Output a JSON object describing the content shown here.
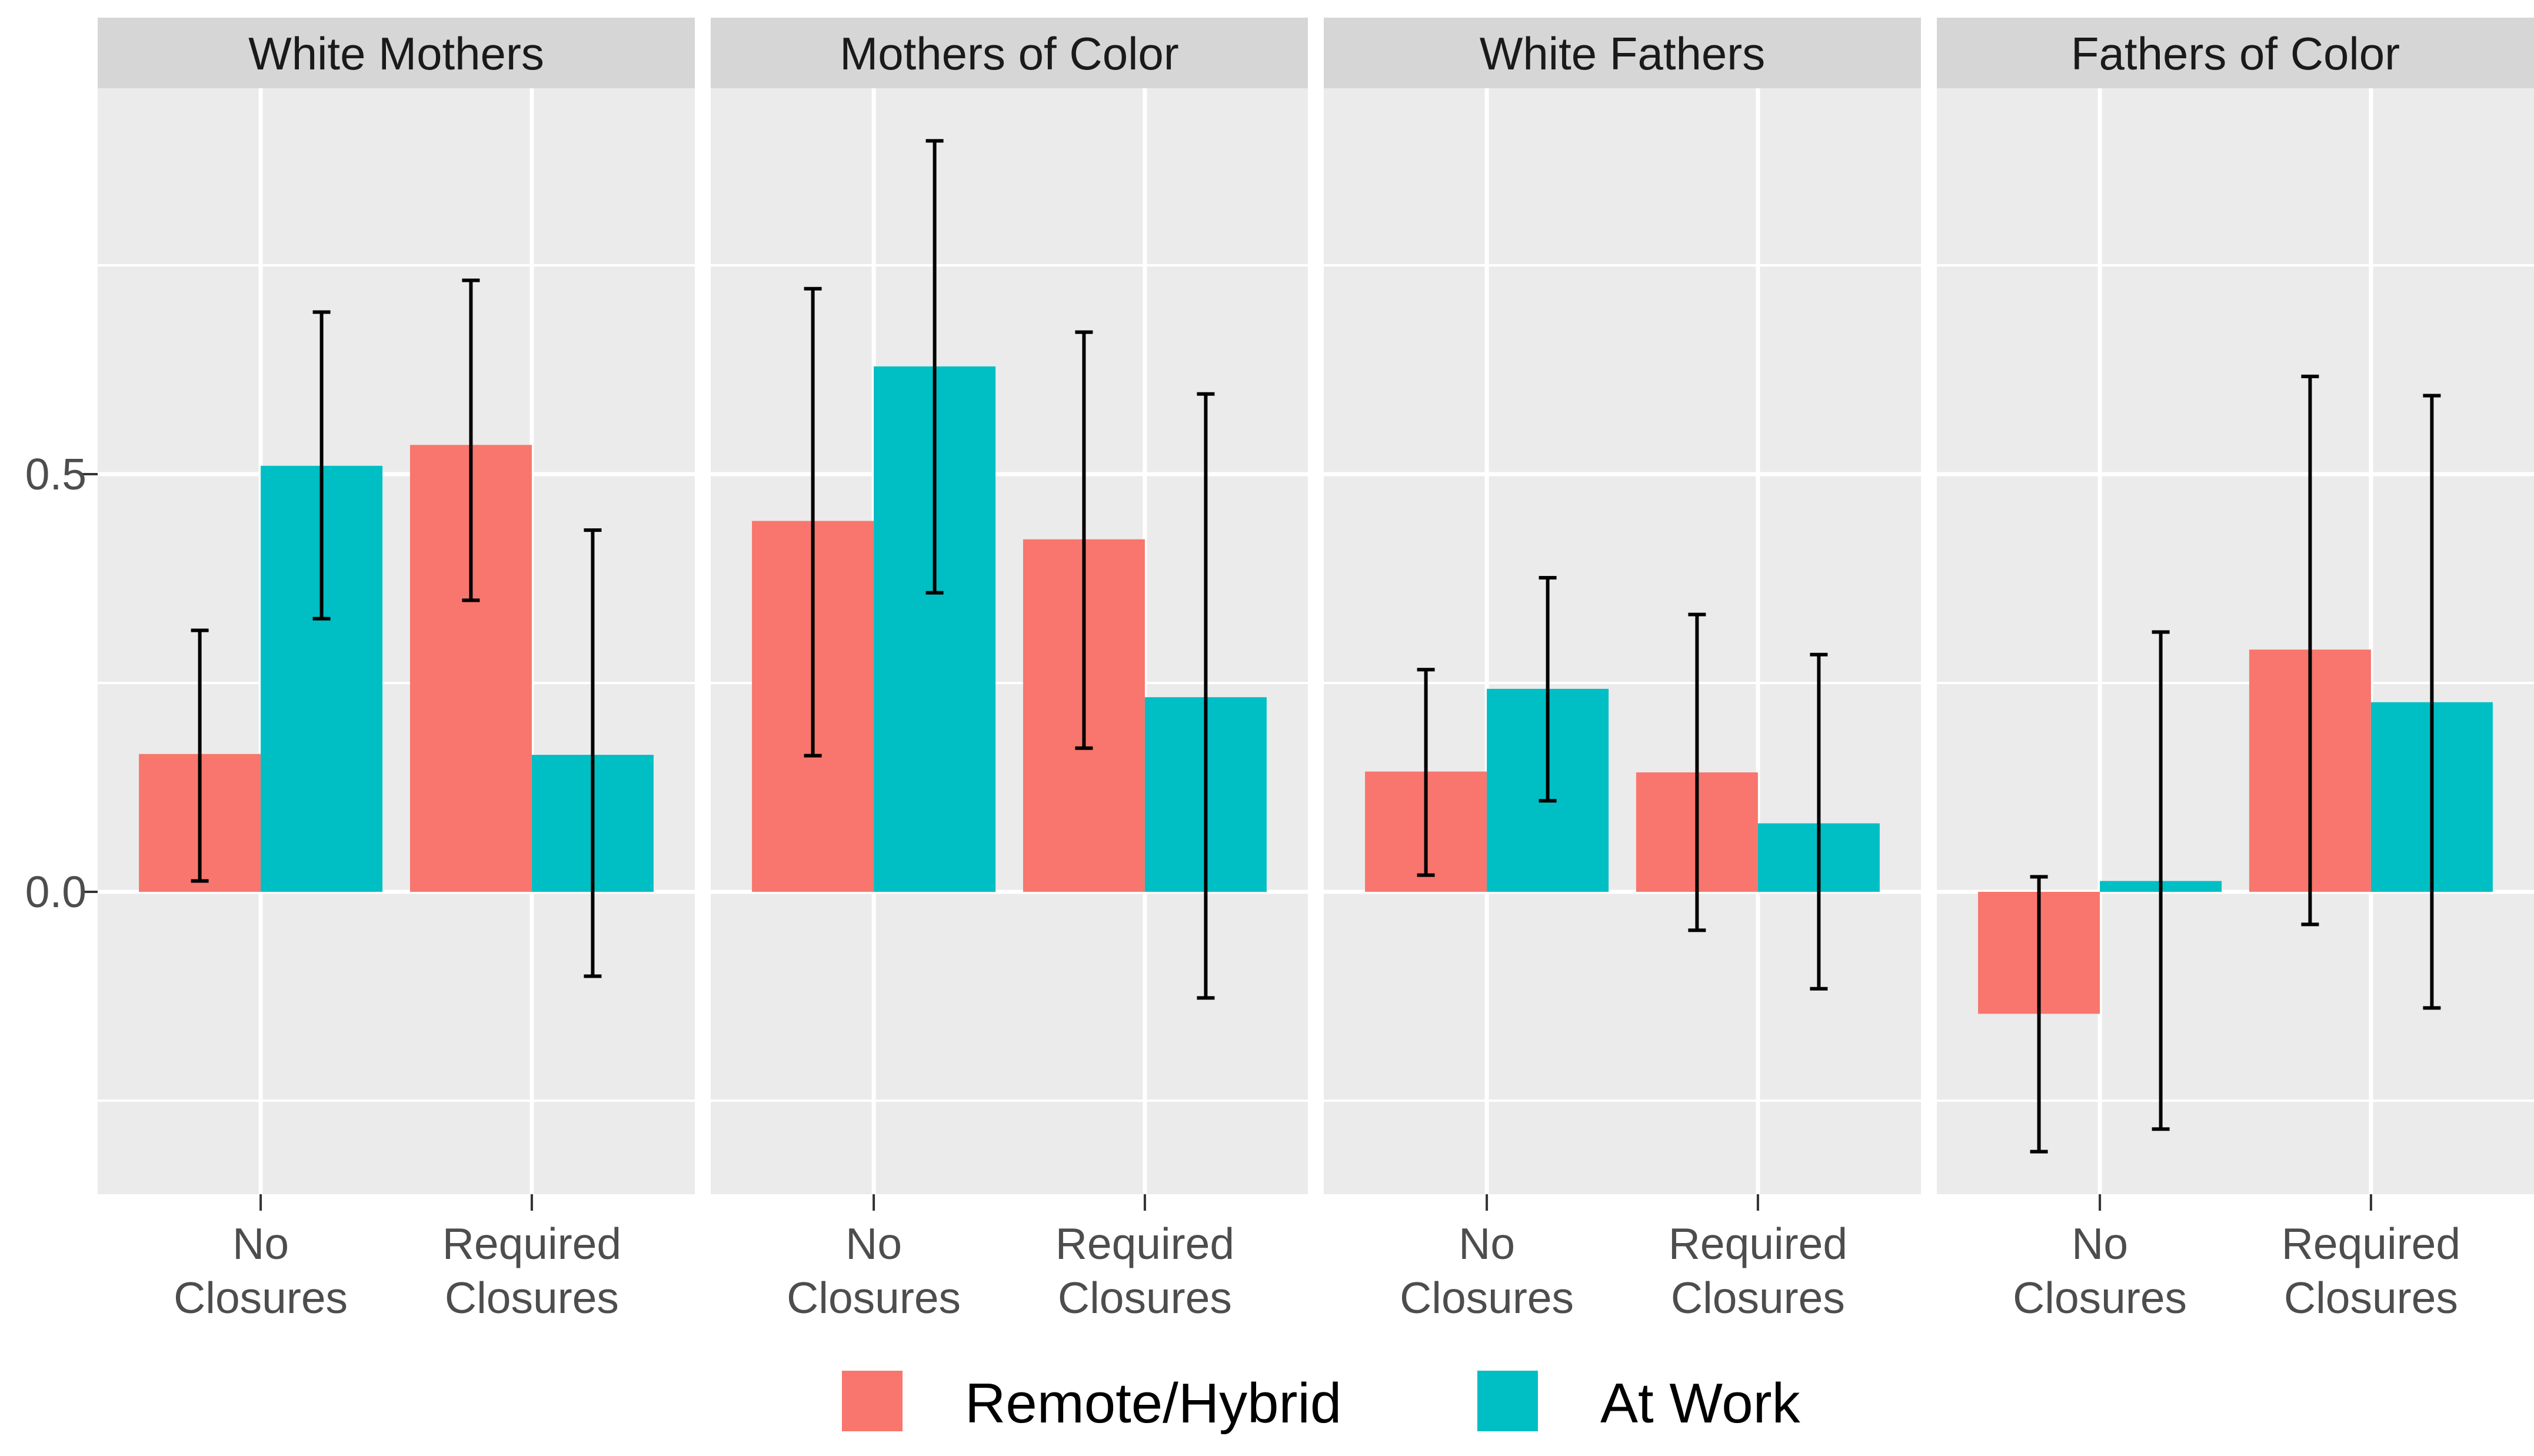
{
  "chart_data": {
    "type": "bar",
    "title": "",
    "description": "Faceted grouped bar chart with error bars; work location by school closure status for four parent groups",
    "facets": [
      "White Mothers",
      "Mothers of Color",
      "White Fathers",
      "Fathers of Color"
    ],
    "categories": [
      {
        "label_lines": [
          "No",
          "Closures"
        ]
      },
      {
        "label_lines": [
          "Required",
          "Closures"
        ]
      }
    ],
    "series": [
      {
        "name": "Remote/Hybrid",
        "color": "#F8766D"
      },
      {
        "name": "At Work",
        "color": "#00BFC4"
      }
    ],
    "y_axis": {
      "ticks": [
        {
          "label": "0.0",
          "value": 0.0
        },
        {
          "label": "0.5",
          "value": 0.5
        }
      ],
      "minor_gridlines": [
        -0.25,
        0.25,
        0.75
      ],
      "range": [
        -0.362,
        0.962
      ],
      "grid": true
    },
    "legend_position": "bottom",
    "panels": [
      {
        "facet": "White Mothers",
        "groups": [
          {
            "category": "No Closures",
            "bars": [
              {
                "series": "Remote/Hybrid",
                "mean": 0.165,
                "ci": [
                  0.013,
                  0.313
                ]
              },
              {
                "series": "At Work",
                "mean": 0.51,
                "ci": [
                  0.327,
                  0.694
                ]
              }
            ]
          },
          {
            "category": "Required Closures",
            "bars": [
              {
                "series": "Remote/Hybrid",
                "mean": 0.535,
                "ci": [
                  0.349,
                  0.732
                ]
              },
              {
                "series": "At Work",
                "mean": 0.164,
                "ci": [
                  -0.101,
                  0.433
                ]
              }
            ]
          }
        ]
      },
      {
        "facet": "Mothers of Color",
        "groups": [
          {
            "category": "No Closures",
            "bars": [
              {
                "series": "Remote/Hybrid",
                "mean": 0.444,
                "ci": [
                  0.163,
                  0.722
                ]
              },
              {
                "series": "At Work",
                "mean": 0.629,
                "ci": [
                  0.358,
                  0.899
                ]
              }
            ]
          },
          {
            "category": "Required Closures",
            "bars": [
              {
                "series": "Remote/Hybrid",
                "mean": 0.422,
                "ci": [
                  0.172,
                  0.67
                ]
              },
              {
                "series": "At Work",
                "mean": 0.233,
                "ci": [
                  -0.127,
                  0.596
                ]
              }
            ]
          }
        ]
      },
      {
        "facet": "White Fathers",
        "groups": [
          {
            "category": "No Closures",
            "bars": [
              {
                "series": "Remote/Hybrid",
                "mean": 0.144,
                "ci": [
                  0.02,
                  0.266
                ]
              },
              {
                "series": "At Work",
                "mean": 0.243,
                "ci": [
                  0.109,
                  0.376
                ]
              }
            ]
          },
          {
            "category": "Required Closures",
            "bars": [
              {
                "series": "Remote/Hybrid",
                "mean": 0.143,
                "ci": [
                  -0.046,
                  0.332
                ]
              },
              {
                "series": "At Work",
                "mean": 0.082,
                "ci": [
                  -0.116,
                  0.284
                ]
              }
            ]
          }
        ]
      },
      {
        "facet": "Fathers of Color",
        "groups": [
          {
            "category": "No Closures",
            "bars": [
              {
                "series": "Remote/Hybrid",
                "mean": -0.146,
                "ci": [
                  -0.311,
                  0.018
                ]
              },
              {
                "series": "At Work",
                "mean": 0.013,
                "ci": [
                  -0.284,
                  0.311
                ]
              }
            ]
          },
          {
            "category": "Required Closures",
            "bars": [
              {
                "series": "Remote/Hybrid",
                "mean": 0.29,
                "ci": [
                  -0.039,
                  0.617
                ]
              },
              {
                "series": "At Work",
                "mean": 0.227,
                "ci": [
                  -0.139,
                  0.594
                ]
              }
            ]
          }
        ]
      }
    ],
    "style": {
      "panel_background": "#EBEBEB",
      "strip_background": "#D6D6D6",
      "strip_text_color": "#1A1A1A",
      "gridline_color": "#FFFFFF",
      "axis_text_color": "#4D4D4D",
      "tick_mark_color": "#333333",
      "errorbar_color": "#000000",
      "legend_text_color": "#000000",
      "background": "#FFFFFF"
    }
  }
}
